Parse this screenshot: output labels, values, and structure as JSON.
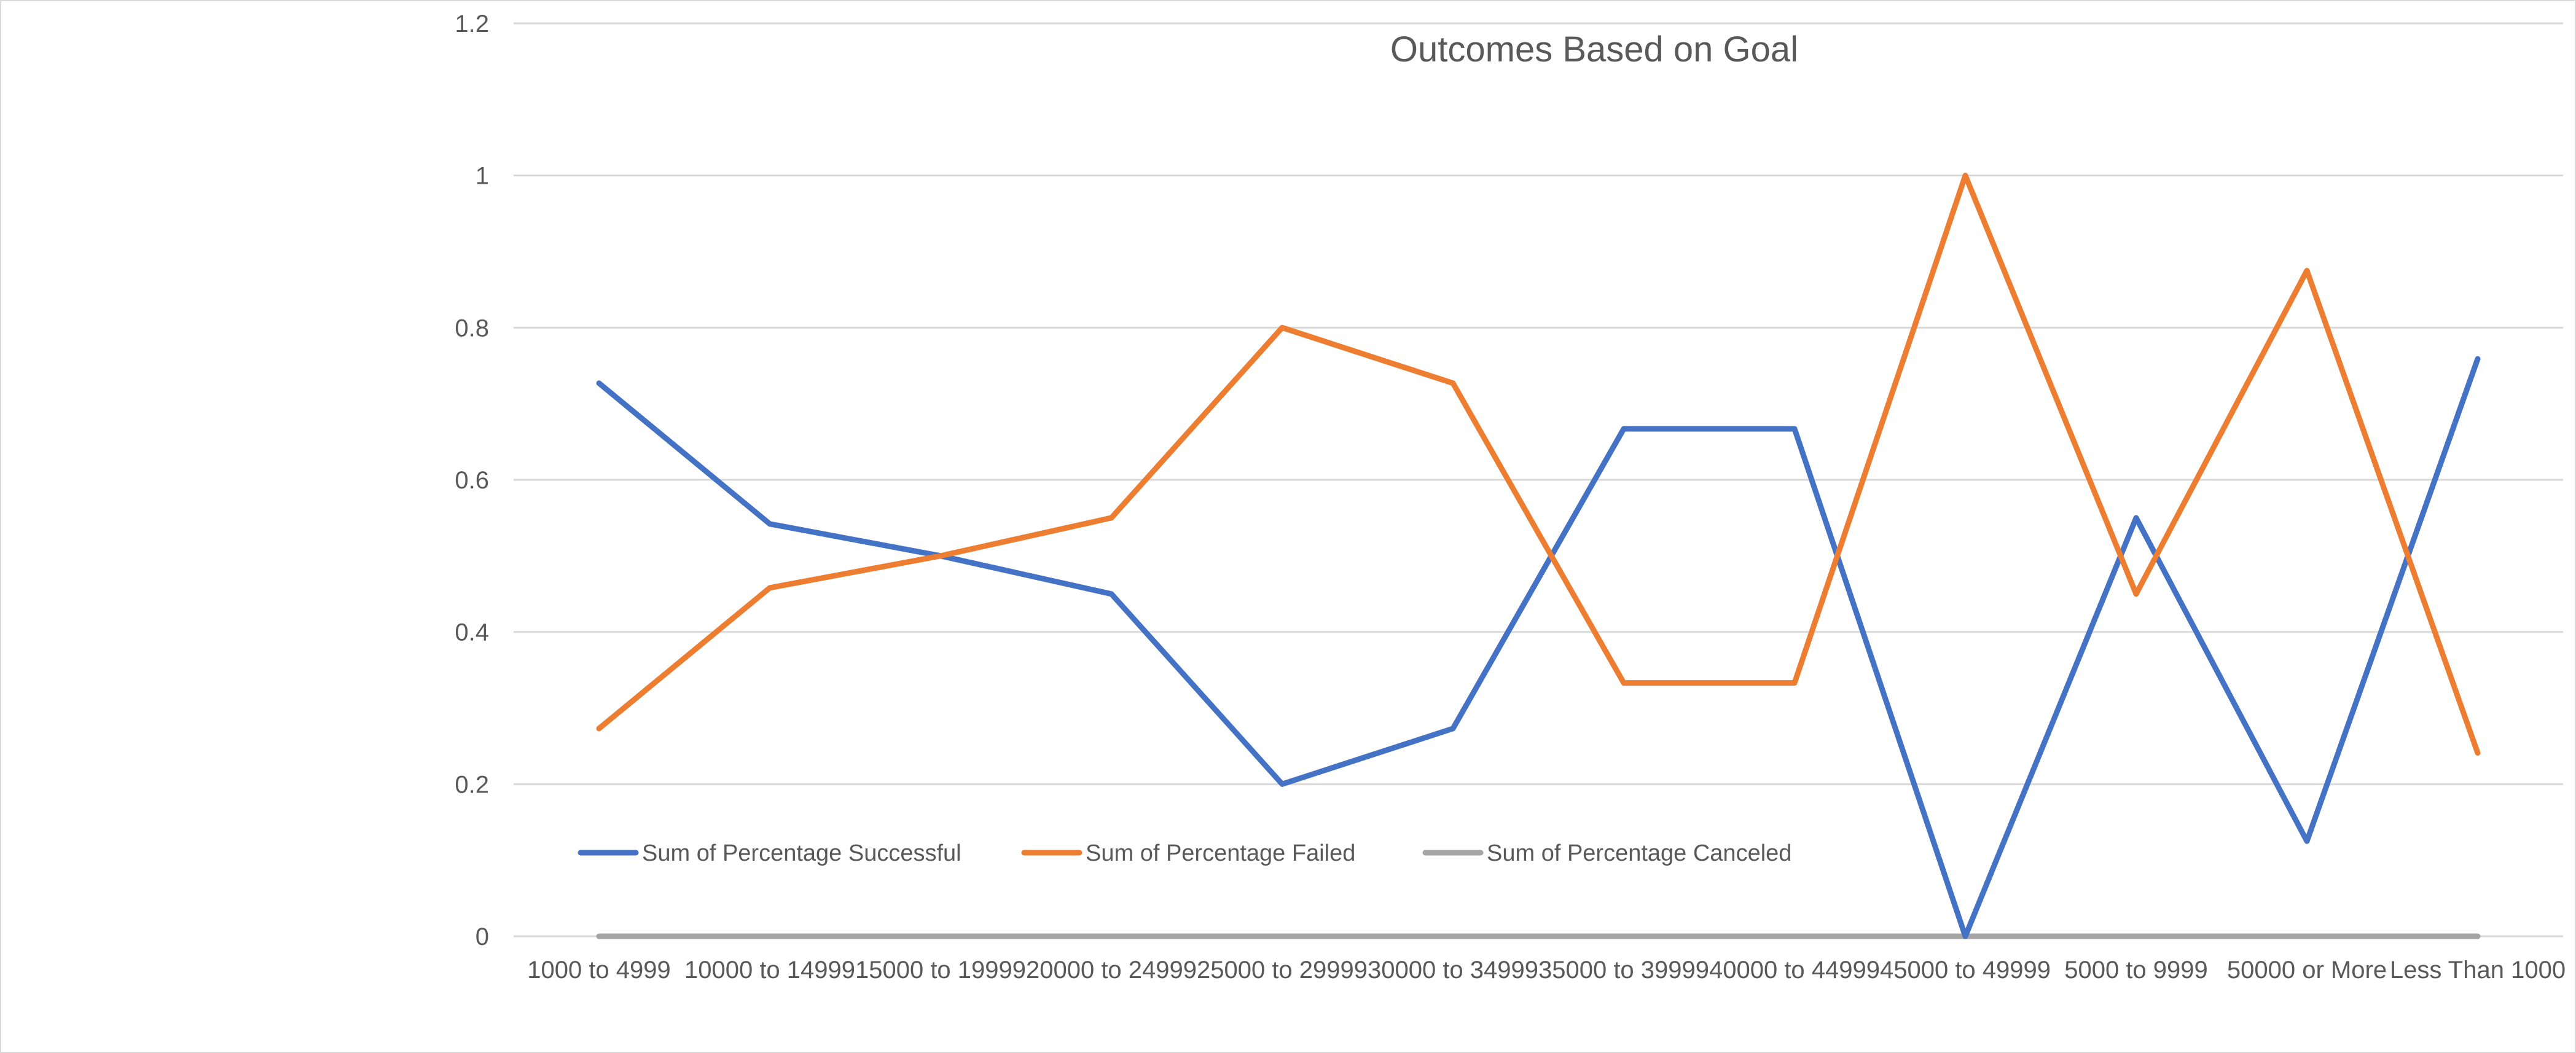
{
  "chart_data": {
    "type": "line",
    "title": "Outcomes Based on Goal",
    "categories": [
      "1000 to 4999",
      "10000 to 14999",
      "15000 to 19999",
      "20000 to 24999",
      "25000 to 29999",
      "30000 to 34999",
      "35000 to 39999",
      "40000 to 44999",
      "45000 to 49999",
      "5000 to 9999",
      "50000 or More",
      "Less Than 1000"
    ],
    "series": [
      {
        "name": "Sum of Percentage Successful",
        "color": "#4472c4",
        "values": [
          0.727,
          0.542,
          0.5,
          0.45,
          0.2,
          0.273,
          0.667,
          0.667,
          0.0,
          0.55,
          0.125,
          0.759
        ]
      },
      {
        "name": "Sum of Percentage Failed",
        "color": "#ed7d31",
        "values": [
          0.273,
          0.458,
          0.5,
          0.55,
          0.8,
          0.727,
          0.333,
          0.333,
          1.0,
          0.45,
          0.875,
          0.241
        ]
      },
      {
        "name": "Sum of Percentage Canceled",
        "color": "#a5a5a5",
        "values": [
          0,
          0,
          0,
          0,
          0,
          0,
          0,
          0,
          0,
          0,
          0,
          0
        ]
      }
    ],
    "yticks": [
      "0",
      "0.2",
      "0.4",
      "0.6",
      "0.8",
      "1",
      "1.2"
    ],
    "ylim": [
      0,
      1.2
    ],
    "grid": true,
    "legend_position": "bottom-left inside"
  }
}
